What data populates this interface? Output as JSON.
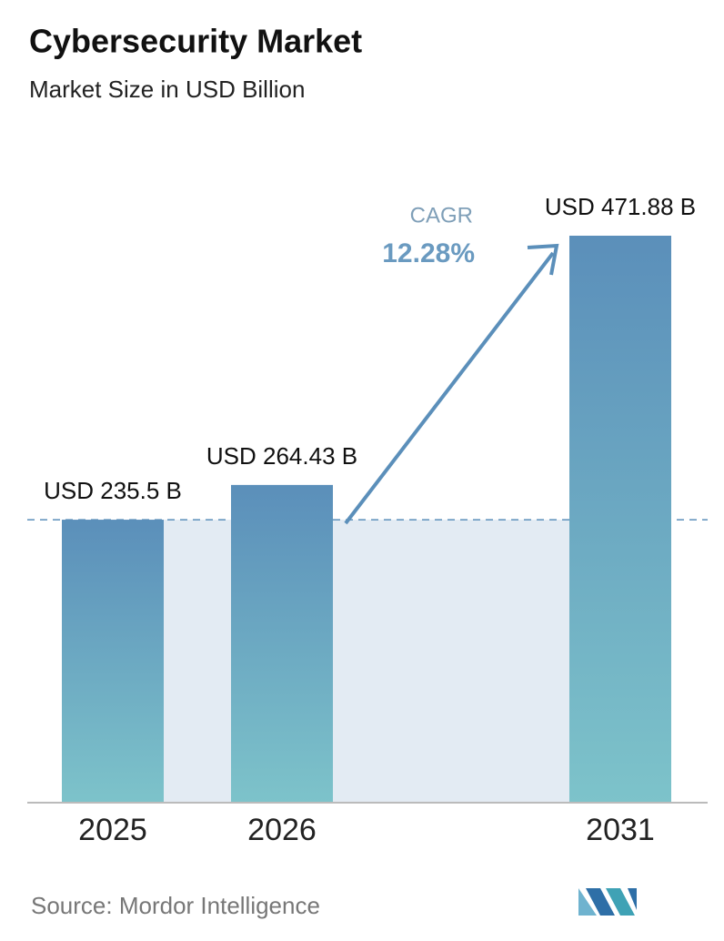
{
  "chart_data": {
    "type": "bar",
    "title": "Cybersecurity Market",
    "subtitle": "Market Size in USD Billion",
    "categories": [
      "2025",
      "2026",
      "2031"
    ],
    "values": [
      235.5,
      264.43,
      471.88
    ],
    "value_labels": [
      "USD 235.5 B",
      "USD 264.43 B",
      "USD 471.88 B"
    ],
    "annotation": {
      "label": "CAGR",
      "value": "12.28%"
    },
    "source": "Source: Mordor Intelligence",
    "colors": [
      "#5b8fba",
      "#7dc3ca"
    ]
  }
}
